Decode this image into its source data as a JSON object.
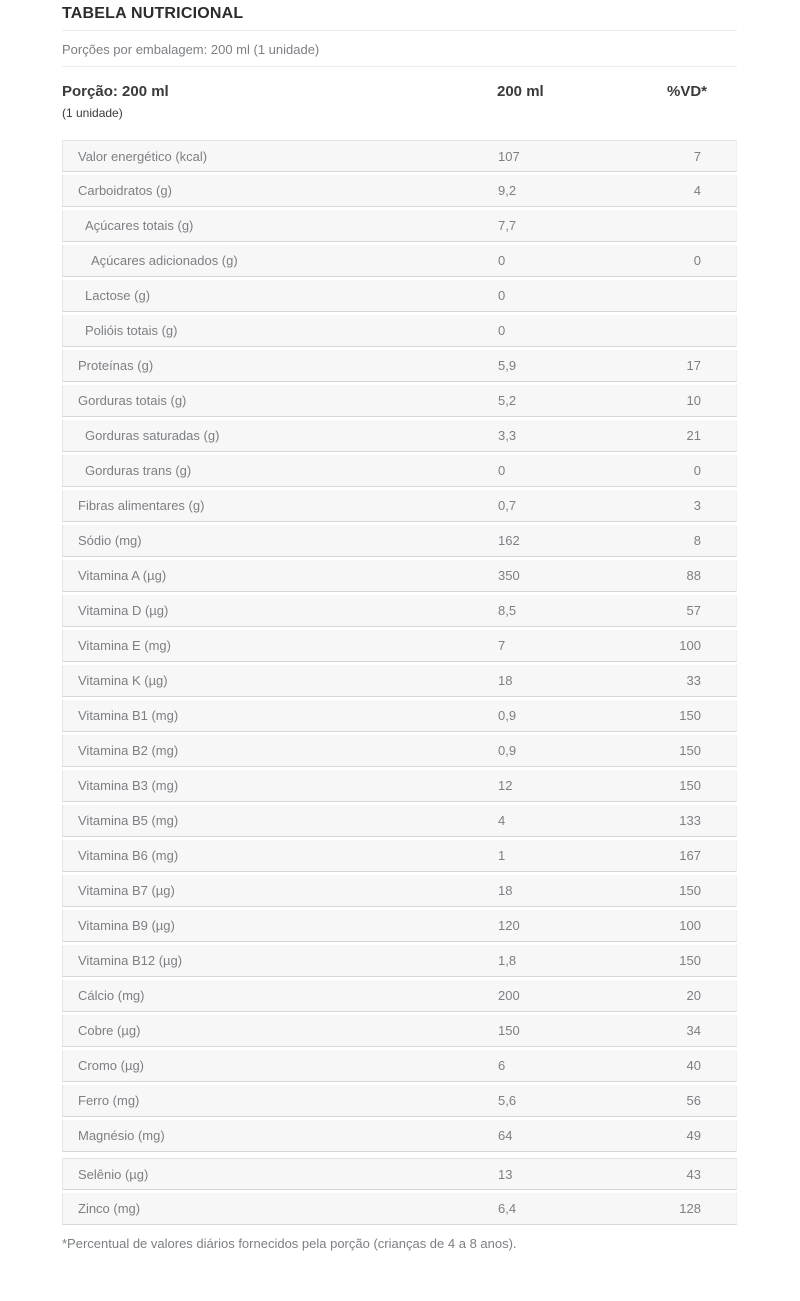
{
  "colors": {
    "row_background": "#f7f7f7",
    "row_border": "#d7d7d7",
    "heading_text": "#3a3a3c",
    "body_text": "#7c7f83"
  },
  "header": {
    "title": "TABELA NUTRICIONAL",
    "servings_per_package": "Porções por embalagem: 200 ml (1 unidade)",
    "portion_label": "Porção: 200 ml",
    "portion_sublabel": "(1 unidade)",
    "amount_column_header": "200 ml",
    "dv_column_header": "%VD*"
  },
  "table": {
    "rows": [
      {
        "label": "Valor energético (kcal)",
        "indent": 0,
        "amount": "107",
        "vd": "7"
      },
      {
        "label": "Carboidratos (g)",
        "indent": 0,
        "amount": "9,2",
        "vd": "4"
      },
      {
        "label": "Açúcares totais (g)",
        "indent": 1,
        "amount": "7,7",
        "vd": ""
      },
      {
        "label": "Açúcares adicionados (g)",
        "indent": 2,
        "amount": "0",
        "vd": "0"
      },
      {
        "label": "Lactose (g)",
        "indent": 1,
        "amount": "0",
        "vd": ""
      },
      {
        "label": "Polióis totais (g)",
        "indent": 1,
        "amount": "0",
        "vd": ""
      },
      {
        "label": "Proteínas (g)",
        "indent": 0,
        "amount": "5,9",
        "vd": "17"
      },
      {
        "label": "Gorduras totais (g)",
        "indent": 0,
        "amount": "5,2",
        "vd": "10"
      },
      {
        "label": "Gorduras saturadas (g)",
        "indent": 1,
        "amount": "3,3",
        "vd": "21"
      },
      {
        "label": "Gorduras trans (g)",
        "indent": 1,
        "amount": "0",
        "vd": "0"
      },
      {
        "label": "Fibras alimentares (g)",
        "indent": 0,
        "amount": "0,7",
        "vd": "3"
      },
      {
        "label": "Sódio (mg)",
        "indent": 0,
        "amount": "162",
        "vd": "8"
      },
      {
        "label": "Vitamina A (µg)",
        "indent": 0,
        "amount": "350",
        "vd": "88"
      },
      {
        "label": "Vitamina D (µg)",
        "indent": 0,
        "amount": "8,5",
        "vd": "57"
      },
      {
        "label": "Vitamina E (mg)",
        "indent": 0,
        "amount": "7",
        "vd": "100"
      },
      {
        "label": "Vitamina K (µg)",
        "indent": 0,
        "amount": "18",
        "vd": "33"
      },
      {
        "label": "Vitamina B1 (mg)",
        "indent": 0,
        "amount": "0,9",
        "vd": "150"
      },
      {
        "label": "Vitamina B2 (mg)",
        "indent": 0,
        "amount": "0,9",
        "vd": "150"
      },
      {
        "label": "Vitamina B3 (mg)",
        "indent": 0,
        "amount": "12",
        "vd": "150"
      },
      {
        "label": "Vitamina B5 (mg)",
        "indent": 0,
        "amount": "4",
        "vd": "133"
      },
      {
        "label": "Vitamina B6 (mg)",
        "indent": 0,
        "amount": "1",
        "vd": "167"
      },
      {
        "label": "Vitamina B7 (µg)",
        "indent": 0,
        "amount": "18",
        "vd": "150"
      },
      {
        "label": "Vitamina B9 (µg)",
        "indent": 0,
        "amount": "120",
        "vd": "100"
      },
      {
        "label": "Vitamina B12 (µg)",
        "indent": 0,
        "amount": "1,8",
        "vd": "150"
      },
      {
        "label": "Cálcio (mg)",
        "indent": 0,
        "amount": "200",
        "vd": "20"
      },
      {
        "label": "Cobre (µg)",
        "indent": 0,
        "amount": "150",
        "vd": "34"
      },
      {
        "label": "Cromo (µg)",
        "indent": 0,
        "amount": "6",
        "vd": "40"
      },
      {
        "label": "Ferro (mg)",
        "indent": 0,
        "amount": "5,6",
        "vd": "56"
      },
      {
        "label": "Magnésio (mg)",
        "indent": 0,
        "amount": "64",
        "vd": "49"
      },
      {
        "label": "Selênio (µg)",
        "indent": 0,
        "amount": "13",
        "vd": "43",
        "section_break": true
      },
      {
        "label": "Zinco (mg)",
        "indent": 0,
        "amount": "6,4",
        "vd": "128"
      }
    ]
  },
  "footer": {
    "note": "*Percentual de valores diários fornecidos pela porção (crianças de 4 a 8 anos)."
  }
}
